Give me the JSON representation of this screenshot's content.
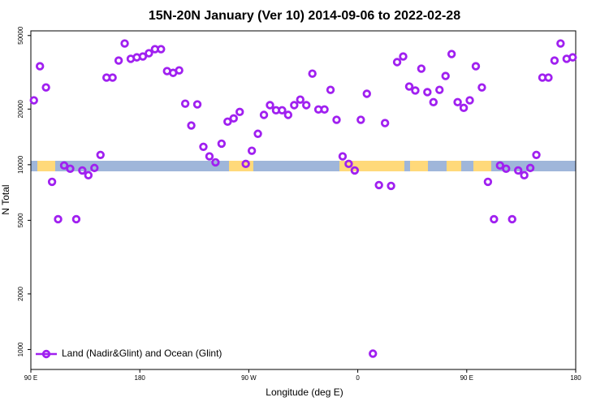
{
  "chart_data": {
    "type": "scatter",
    "title": "15N-20N January (Ver 10)   2014-09-06 to 2022-02-28",
    "xlabel": "Longitude (deg E)",
    "ylabel": "N Total",
    "xlim": [
      90,
      540
    ],
    "xticks": [
      {
        "value": 90,
        "label": "90 E"
      },
      {
        "value": 180,
        "label": "180"
      },
      {
        "value": 270,
        "label": "90 W"
      },
      {
        "value": 360,
        "label": "0"
      },
      {
        "value": 450,
        "label": "90 E"
      },
      {
        "value": 540,
        "label": "180"
      }
    ],
    "ylim": [
      780,
      53000
    ],
    "yscale": "log",
    "yticks": [
      1000,
      2000,
      5000,
      10000,
      20000,
      50000
    ],
    "legend": "bottom left",
    "series": [
      {
        "name": "Land (Nadir&Glint) and Ocean (Glint)",
        "color": "#a020f0",
        "x": [
          92.5,
          97.5,
          102.5,
          107.5,
          112.5,
          117.5,
          122.5,
          127.5,
          132.5,
          137.5,
          142.5,
          147.5,
          152.5,
          157.5,
          162.5,
          167.5,
          172.5,
          177.5,
          182.5,
          187.5,
          192.5,
          197.5,
          202.5,
          207.5,
          212.5,
          217.5,
          222.5,
          227.5,
          232.5,
          237.5,
          242.5,
          247.5,
          252.5,
          257.5,
          262.5,
          267.5,
          272.5,
          277.5,
          282.5,
          287.5,
          292.5,
          297.5,
          302.5,
          307.5,
          312.5,
          317.5,
          322.5,
          327.5,
          332.5,
          337.5,
          342.5,
          347.5,
          352.5,
          357.5,
          362.5,
          367.5,
          372.5,
          377.5,
          382.5,
          387.5,
          392.5,
          397.5,
          402.5,
          407.5,
          412.5,
          417.5,
          422.5,
          427.5,
          432.5,
          437.5,
          442.5,
          447.5,
          452.5,
          457.5,
          462.5,
          467.5,
          472.5,
          477.5,
          482.5,
          487.5,
          492.5,
          497.5,
          502.5,
          507.5,
          512.5,
          517.5,
          522.5,
          527.5,
          532.5,
          537.5
        ],
        "values": [
          22300,
          34100,
          26200,
          8080,
          5070,
          9900,
          9510,
          5070,
          9310,
          8770,
          9600,
          11300,
          29600,
          29600,
          36600,
          45300,
          37400,
          38100,
          38500,
          40100,
          42200,
          42200,
          32100,
          31400,
          32400,
          21400,
          16300,
          21200,
          12500,
          11100,
          10300,
          13000,
          17100,
          17800,
          19300,
          10100,
          11900,
          14700,
          18600,
          21000,
          19700,
          19700,
          18600,
          21000,
          22500,
          21000,
          31100,
          19900,
          19900,
          25400,
          17500,
          11100,
          10100,
          9310,
          17500,
          24200,
          950,
          7760,
          16800,
          7680,
          35900,
          38500,
          26500,
          25200,
          33100,
          24700,
          21800,
          25400,
          30200,
          39700,
          21800,
          20300,
          22300,
          34100,
          26200,
          8080,
          5070,
          9900,
          9510,
          5070,
          9310,
          8770,
          9600,
          11300,
          29600,
          29600,
          36600,
          45300,
          37400,
          38100
        ]
      }
    ]
  }
}
